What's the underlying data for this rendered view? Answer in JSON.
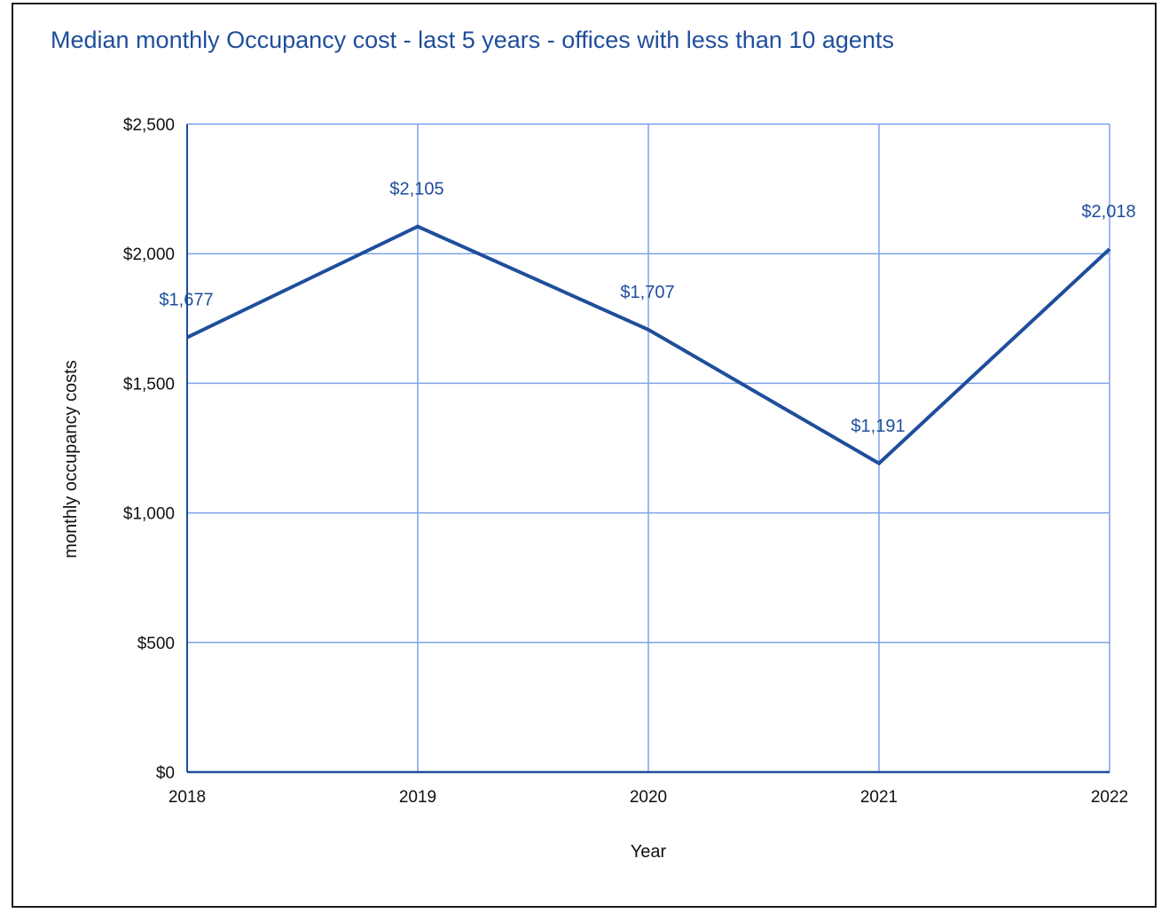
{
  "chart_data": {
    "type": "line",
    "title": "Median monthly Occupancy cost - last 5 years - offices with less than 10 agents",
    "xlabel": "Year",
    "ylabel": "monthly occupancy costs",
    "categories": [
      "2018",
      "2019",
      "2020",
      "2021",
      "2022"
    ],
    "series": [
      {
        "values": [
          1677,
          2105,
          1707,
          1191,
          2018
        ],
        "labels": [
          "$1,677",
          "$2,105",
          "$1,707",
          "$1,191",
          "$2,018"
        ]
      }
    ],
    "ylim": [
      0,
      2500
    ],
    "yticks": [
      0,
      500,
      1000,
      1500,
      2000,
      2500
    ],
    "ytick_labels": [
      "$0",
      "$500",
      "$1,000",
      "$1,500",
      "$2,000",
      "$2,500"
    ],
    "grid": true,
    "colors": {
      "line": "#1f4e9c",
      "grid": "#7ea4e6",
      "title": "#1f4e9c",
      "axis": "#1f4e9c"
    }
  }
}
